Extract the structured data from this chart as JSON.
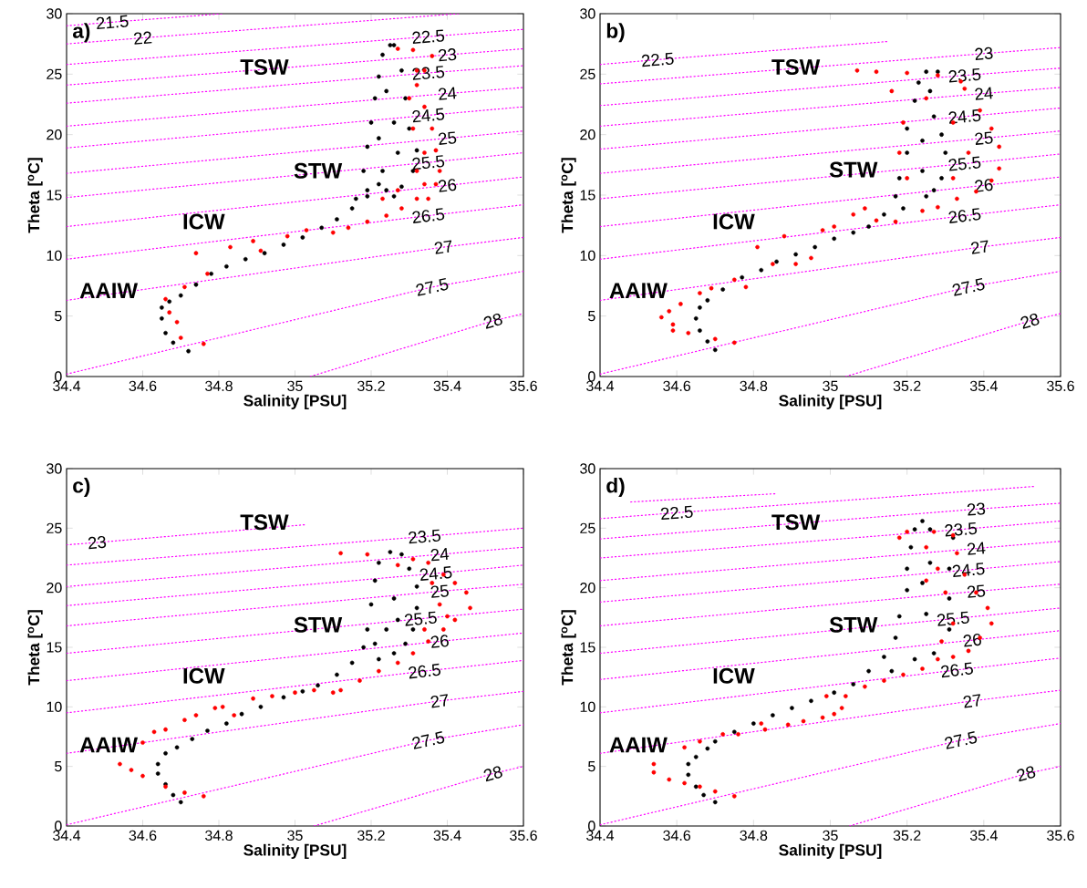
{
  "chart_data": [
    {
      "type": "scatter",
      "title": "a)",
      "xlabel": "Salinity [PSU]",
      "ylabel": "Theta [$^{o}$C]",
      "xlim": [
        34.4,
        35.6
      ],
      "ylim": [
        0,
        30
      ],
      "xticks": [
        34.4,
        34.6,
        34.8,
        35,
        35.2,
        35.4,
        35.6
      ],
      "yticks": [
        0,
        5,
        10,
        15,
        20,
        25,
        30
      ],
      "annotations": [
        "TSW",
        "STW",
        "ICW",
        "AAIW"
      ],
      "series": [
        {
          "type": "line",
          "name": "21.5",
          "color": "#ff00ff",
          "line_style": "dotted",
          "x": [
            34.4,
            34.52,
            34.81
          ],
          "values": [
            29.0,
            29.3,
            30
          ]
        },
        {
          "type": "line",
          "name": "22",
          "color": "#ff00ff",
          "line_style": "dotted",
          "x": [
            34.4,
            34.6,
            35.43
          ],
          "values": [
            27.5,
            28.0,
            30
          ]
        },
        {
          "type": "line",
          "name": "22.5",
          "color": "#ff00ff",
          "line_style": "dotted",
          "x": [
            34.4,
            35.35,
            35.6
          ],
          "values": [
            25.8,
            28.1,
            28.7
          ]
        },
        {
          "type": "line",
          "name": "23",
          "color": "#ff00ff",
          "line_style": "dotted",
          "x": [
            34.4,
            35.4,
            35.6
          ],
          "values": [
            24.1,
            26.6,
            27.1
          ]
        },
        {
          "type": "line",
          "name": "23.5",
          "color": "#ff00ff",
          "line_style": "dotted",
          "x": [
            34.4,
            35.35,
            35.6
          ],
          "values": [
            22.6,
            25.1,
            25.7
          ]
        },
        {
          "type": "line",
          "name": "24",
          "color": "#ff00ff",
          "line_style": "dotted",
          "x": [
            34.4,
            35.4,
            35.6
          ],
          "values": [
            20.7,
            23.4,
            23.9
          ]
        },
        {
          "type": "line",
          "name": "24.5",
          "color": "#ff00ff",
          "line_style": "dotted",
          "x": [
            34.4,
            35.35,
            35.6
          ],
          "values": [
            18.9,
            21.6,
            22.3
          ]
        },
        {
          "type": "line",
          "name": "25",
          "color": "#ff00ff",
          "line_style": "dotted",
          "x": [
            34.4,
            35.4,
            35.6
          ],
          "values": [
            16.8,
            19.7,
            20.3
          ]
        },
        {
          "type": "line",
          "name": "25.5",
          "color": "#ff00ff",
          "line_style": "dotted",
          "x": [
            34.4,
            35.35,
            35.6
          ],
          "values": [
            14.8,
            17.7,
            18.5
          ]
        },
        {
          "type": "line",
          "name": "26",
          "color": "#ff00ff",
          "line_style": "dotted",
          "x": [
            34.4,
            35.4,
            35.6
          ],
          "values": [
            12.4,
            15.8,
            16.5
          ]
        },
        {
          "type": "line",
          "name": "26.5",
          "color": "#ff00ff",
          "line_style": "dotted",
          "x": [
            34.4,
            35.35,
            35.6
          ],
          "values": [
            9.7,
            13.3,
            14.2
          ]
        },
        {
          "type": "line",
          "name": "27",
          "color": "#ff00ff",
          "line_style": "dotted",
          "x": [
            34.4,
            35.39,
            35.6
          ],
          "values": [
            6.3,
            10.7,
            11.5
          ]
        },
        {
          "type": "line",
          "name": "27.5",
          "color": "#ff00ff",
          "line_style": "dotted",
          "x": [
            34.4,
            35.36,
            35.6
          ],
          "values": [
            0.2,
            7.4,
            8.7
          ]
        },
        {
          "type": "line",
          "name": "28",
          "color": "#ff00ff",
          "line_style": "dotted",
          "x": [
            35.04,
            35.52,
            35.6
          ],
          "values": [
            0,
            4.6,
            5.2
          ]
        },
        {
          "color": "#000000",
          "marker": "circle",
          "x": [
            34.72,
            34.68,
            34.66,
            34.65,
            34.65,
            34.67,
            34.7,
            34.74,
            34.78,
            34.82,
            34.87,
            34.92,
            34.97,
            35.02,
            35.07,
            35.11,
            35.15,
            35.19,
            35.22,
            35.18,
            35.19,
            35.2,
            35.21,
            35.22,
            35.23,
            35.25,
            35.26,
            35.28,
            35.29,
            35.3,
            35.32,
            35.31,
            35.28,
            35.26,
            35.24,
            35.26,
            35.27,
            35.23,
            35.22,
            35.24,
            35.16,
            35.19
          ],
          "values": [
            2.1,
            2.8,
            3.6,
            4.8,
            5.7,
            6.2,
            6.7,
            7.6,
            8.5,
            9.1,
            9.7,
            10.2,
            10.9,
            11.5,
            12.3,
            13.0,
            13.9,
            14.9,
            15.9,
            17.0,
            19.0,
            21.0,
            23.0,
            24.8,
            26.6,
            27.4,
            27.4,
            25.3,
            23.0,
            20.5,
            18.7,
            17.0,
            15.7,
            14.9,
            23.6,
            21.0,
            18.5,
            17.0,
            19.7,
            15.4,
            14.7,
            15.4
          ]
        },
        {
          "color": "#ff0000",
          "marker": "circle",
          "x": [
            34.76,
            34.7,
            34.69,
            34.67,
            34.66,
            34.71,
            34.77,
            34.74,
            34.83,
            34.89,
            34.91,
            34.98,
            35.03,
            35.1,
            35.14,
            35.19,
            35.24,
            35.28,
            35.32,
            35.35,
            35.37,
            35.38,
            35.37,
            35.36,
            35.34,
            35.32,
            35.34,
            35.36,
            35.31,
            35.27,
            35.32,
            35.3,
            35.31,
            35.34,
            35.32,
            35.27,
            35.23,
            35.34
          ],
          "values": [
            2.7,
            3.2,
            4.5,
            5.3,
            6.4,
            7.4,
            8.5,
            10.2,
            10.7,
            11.2,
            10.4,
            11.6,
            12.1,
            11.9,
            12.3,
            12.8,
            13.3,
            13.9,
            14.7,
            14.7,
            15.9,
            17.0,
            18.7,
            20.5,
            22.3,
            24.1,
            25.3,
            26.5,
            27.0,
            27.1,
            25.3,
            23.0,
            20.5,
            18.5,
            17.0,
            15.4,
            14.7,
            15.9
          ]
        }
      ]
    },
    {
      "type": "scatter",
      "title": "b)",
      "xlabel": "Salinity [PSU]",
      "ylabel": "Theta [$^{o}$C]",
      "xlim": [
        34.4,
        35.6
      ],
      "ylim": [
        0,
        30
      ],
      "xticks": [
        34.4,
        34.6,
        34.8,
        35,
        35.2,
        35.4,
        35.6
      ],
      "yticks": [
        0,
        5,
        10,
        15,
        20,
        25,
        30
      ],
      "annotations": [
        "TSW",
        "STW",
        "ICW",
        "AAIW"
      ],
      "series": [
        {
          "type": "line",
          "name": "22.5",
          "color": "#ff00ff",
          "line_style": "dotted",
          "x": [
            34.4,
            34.55,
            35.15
          ],
          "values": [
            25.8,
            26.2,
            27.7
          ]
        },
        {
          "type": "line",
          "name": "23",
          "color": "#ff00ff",
          "line_style": "dotted",
          "x": [
            34.4,
            35.4,
            35.6
          ],
          "values": [
            24.2,
            26.7,
            27.2
          ]
        },
        {
          "type": "line",
          "name": "23.5",
          "color": "#ff00ff",
          "line_style": "dotted",
          "x": [
            34.4,
            35.35,
            35.6
          ],
          "values": [
            22.4,
            24.9,
            25.5
          ]
        },
        {
          "type": "line",
          "name": "24",
          "color": "#ff00ff",
          "line_style": "dotted",
          "x": [
            34.4,
            35.4,
            35.6
          ],
          "values": [
            20.7,
            23.4,
            23.9
          ]
        },
        {
          "type": "line",
          "name": "24.5",
          "color": "#ff00ff",
          "line_style": "dotted",
          "x": [
            34.4,
            35.35,
            35.6
          ],
          "values": [
            18.8,
            21.5,
            22.2
          ]
        },
        {
          "type": "line",
          "name": "25",
          "color": "#ff00ff",
          "line_style": "dotted",
          "x": [
            34.4,
            35.4,
            35.6
          ],
          "values": [
            16.8,
            19.7,
            20.3
          ]
        },
        {
          "type": "line",
          "name": "25.5",
          "color": "#ff00ff",
          "line_style": "dotted",
          "x": [
            34.4,
            35.35,
            35.6
          ],
          "values": [
            14.7,
            17.6,
            18.4
          ]
        },
        {
          "type": "line",
          "name": "26",
          "color": "#ff00ff",
          "line_style": "dotted",
          "x": [
            34.4,
            35.4,
            35.6
          ],
          "values": [
            12.4,
            15.8,
            16.5
          ]
        },
        {
          "type": "line",
          "name": "26.5",
          "color": "#ff00ff",
          "line_style": "dotted",
          "x": [
            34.4,
            35.35,
            35.6
          ],
          "values": [
            9.7,
            13.3,
            14.2
          ]
        },
        {
          "type": "line",
          "name": "27",
          "color": "#ff00ff",
          "line_style": "dotted",
          "x": [
            34.4,
            35.39,
            35.6
          ],
          "values": [
            6.3,
            10.7,
            11.5
          ]
        },
        {
          "type": "line",
          "name": "27.5",
          "color": "#ff00ff",
          "line_style": "dotted",
          "x": [
            34.4,
            35.36,
            35.6
          ],
          "values": [
            0.2,
            7.4,
            8.7
          ]
        },
        {
          "type": "line",
          "name": "28",
          "color": "#ff00ff",
          "line_style": "dotted",
          "x": [
            35.04,
            35.52,
            35.6
          ],
          "values": [
            0,
            4.6,
            5.2
          ]
        },
        {
          "color": "#000000",
          "marker": "circle",
          "x": [
            34.7,
            34.68,
            34.66,
            34.65,
            34.66,
            34.68,
            34.72,
            34.77,
            34.82,
            34.86,
            34.91,
            34.96,
            35.01,
            35.06,
            35.1,
            35.14,
            35.17,
            35.18,
            35.2,
            35.2,
            35.22,
            35.23,
            35.25,
            35.28,
            35.26,
            35.27,
            35.29,
            35.3,
            35.29,
            35.27,
            35.25,
            35.19,
            35.24,
            35.24
          ],
          "values": [
            2.2,
            2.9,
            3.8,
            4.8,
            5.7,
            6.3,
            7.2,
            8.2,
            8.8,
            9.5,
            10.1,
            10.7,
            11.4,
            11.9,
            12.4,
            13.4,
            14.9,
            16.4,
            18.5,
            20.5,
            22.8,
            24.3,
            25.2,
            25.2,
            23.6,
            21.5,
            20.0,
            18.5,
            16.4,
            15.4,
            14.9,
            13.9,
            17.0,
            19.5
          ]
        },
        {
          "color": "#ff0000",
          "marker": "circle",
          "x": [
            34.75,
            34.7,
            34.63,
            34.59,
            34.59,
            34.56,
            34.58,
            34.61,
            34.66,
            34.69,
            34.75,
            34.78,
            34.81,
            34.85,
            34.88,
            34.91,
            34.95,
            34.98,
            35.01,
            35.06,
            35.09,
            35.12,
            35.17,
            35.24,
            35.28,
            35.33,
            35.38,
            35.42,
            35.44,
            35.44,
            35.42,
            35.39,
            35.35,
            35.34,
            35.28,
            35.2,
            35.12,
            35.07,
            35.16,
            35.19,
            35.18,
            35.2,
            35.32,
            35.36,
            35.32,
            35.25
          ],
          "values": [
            2.8,
            3.1,
            3.6,
            3.8,
            4.3,
            4.9,
            5.4,
            6.0,
            6.9,
            7.3,
            8.0,
            7.4,
            10.7,
            9.3,
            11.6,
            9.3,
            9.8,
            12.1,
            12.4,
            13.4,
            13.9,
            12.9,
            12.8,
            13.7,
            14.0,
            14.7,
            15.3,
            16.2,
            17.2,
            19.0,
            20.5,
            22.0,
            23.8,
            24.4,
            24.9,
            25.1,
            25.2,
            25.3,
            23.6,
            21.0,
            18.5,
            16.4,
            21.0,
            18.5,
            16.4,
            23.0
          ]
        }
      ]
    },
    {
      "type": "scatter",
      "title": "c)",
      "xlabel": "Salinity [PSU]",
      "ylabel": "Theta [$^{o}$C]",
      "xlim": [
        34.4,
        35.6
      ],
      "ylim": [
        0,
        30
      ],
      "xticks": [
        34.4,
        34.6,
        34.8,
        35,
        35.2,
        35.4,
        35.6
      ],
      "yticks": [
        0,
        5,
        10,
        15,
        20,
        25,
        30
      ],
      "annotations": [
        "TSW",
        "STW",
        "ICW",
        "AAIW"
      ],
      "series": [
        {
          "type": "line",
          "name": "23",
          "color": "#ff00ff",
          "line_style": "dotted",
          "x": [
            34.4,
            34.48,
            35.03
          ],
          "values": [
            23.6,
            23.8,
            25.3
          ]
        },
        {
          "type": "line",
          "name": "23.5",
          "color": "#ff00ff",
          "line_style": "dotted",
          "x": [
            34.4,
            35.34,
            35.6
          ],
          "values": [
            21.9,
            24.3,
            25.0
          ]
        },
        {
          "type": "line",
          "name": "24",
          "color": "#ff00ff",
          "line_style": "dotted",
          "x": [
            34.4,
            35.38,
            35.6
          ],
          "values": [
            20.1,
            22.8,
            23.4
          ]
        },
        {
          "type": "line",
          "name": "24.5",
          "color": "#ff00ff",
          "line_style": "dotted",
          "x": [
            34.4,
            35.37,
            35.6
          ],
          "values": [
            18.5,
            21.2,
            21.9
          ]
        },
        {
          "type": "line",
          "name": "25",
          "color": "#ff00ff",
          "line_style": "dotted",
          "x": [
            34.4,
            35.38,
            35.6
          ],
          "values": [
            16.8,
            19.7,
            20.3
          ]
        },
        {
          "type": "line",
          "name": "25.5",
          "color": "#ff00ff",
          "line_style": "dotted",
          "x": [
            34.4,
            35.33,
            35.6
          ],
          "values": [
            14.5,
            17.4,
            18.2
          ]
        },
        {
          "type": "line",
          "name": "26",
          "color": "#ff00ff",
          "line_style": "dotted",
          "x": [
            34.4,
            35.38,
            35.6
          ],
          "values": [
            12.2,
            15.5,
            16.2
          ]
        },
        {
          "type": "line",
          "name": "26.5",
          "color": "#ff00ff",
          "line_style": "dotted",
          "x": [
            34.4,
            35.34,
            35.6
          ],
          "values": [
            9.5,
            13.0,
            13.9
          ]
        },
        {
          "type": "line",
          "name": "27",
          "color": "#ff00ff",
          "line_style": "dotted",
          "x": [
            34.4,
            35.38,
            35.6
          ],
          "values": [
            6.1,
            10.5,
            11.3
          ]
        },
        {
          "type": "line",
          "name": "27.5",
          "color": "#ff00ff",
          "line_style": "dotted",
          "x": [
            34.4,
            35.35,
            35.6
          ],
          "values": [
            0.1,
            7.2,
            8.5
          ]
        },
        {
          "type": "line",
          "name": "28",
          "color": "#ff00ff",
          "line_style": "dotted",
          "x": [
            35.05,
            35.52,
            35.6
          ],
          "values": [
            0,
            4.4,
            5.0
          ]
        },
        {
          "color": "#000000",
          "marker": "circle",
          "x": [
            34.7,
            34.68,
            34.66,
            34.64,
            34.64,
            34.66,
            34.69,
            34.73,
            34.77,
            34.82,
            34.86,
            34.91,
            34.97,
            35.02,
            35.06,
            35.11,
            35.15,
            35.18,
            35.19,
            35.2,
            35.21,
            35.22,
            35.25,
            35.28,
            35.3,
            35.32,
            35.32,
            35.31,
            35.29,
            35.26,
            35.22,
            35.26,
            35.24,
            35.27,
            35.21
          ],
          "values": [
            2.0,
            2.6,
            3.5,
            4.4,
            5.2,
            6.1,
            6.6,
            7.3,
            8.0,
            8.6,
            9.4,
            10.0,
            10.8,
            11.3,
            11.8,
            12.7,
            13.7,
            15.0,
            16.5,
            18.6,
            20.6,
            22.1,
            23.0,
            22.8,
            21.6,
            20.1,
            18.3,
            16.5,
            15.3,
            14.5,
            14.0,
            19.1,
            16.5,
            17.3,
            15.3
          ]
        },
        {
          "color": "#ff0000",
          "marker": "circle",
          "x": [
            34.76,
            34.71,
            34.66,
            34.6,
            34.57,
            34.54,
            34.6,
            34.63,
            34.66,
            34.71,
            34.74,
            34.79,
            34.81,
            34.84,
            34.89,
            34.94,
            35.0,
            35.05,
            35.1,
            35.12,
            35.17,
            35.22,
            35.27,
            35.31,
            35.35,
            35.39,
            35.42,
            35.46,
            35.45,
            35.42,
            35.39,
            35.35,
            35.31,
            35.19,
            35.12,
            35.27,
            35.36,
            35.38,
            35.4,
            35.34
          ],
          "values": [
            2.5,
            2.8,
            3.3,
            4.2,
            4.7,
            5.2,
            7.0,
            7.9,
            8.1,
            8.9,
            9.3,
            9.9,
            10.0,
            9.3,
            10.7,
            10.9,
            11.2,
            11.4,
            11.2,
            11.4,
            12.2,
            13.0,
            13.7,
            14.5,
            15.5,
            16.5,
            17.3,
            18.3,
            19.6,
            20.4,
            21.1,
            22.1,
            22.4,
            22.8,
            22.9,
            21.9,
            20.4,
            18.6,
            17.6,
            16.5
          ]
        }
      ]
    },
    {
      "type": "scatter",
      "title": "d)",
      "xlabel": "Salinity [PSU]",
      "ylabel": "Theta [$^{o}$C]",
      "xlim": [
        34.4,
        35.6
      ],
      "ylim": [
        0,
        30
      ],
      "xticks": [
        34.4,
        34.6,
        34.8,
        35,
        35.2,
        35.4,
        35.6
      ],
      "yticks": [
        0,
        5,
        10,
        15,
        20,
        25,
        30
      ],
      "annotations": [
        "TSW",
        "STW",
        "ICW",
        "AAIW"
      ],
      "series": [
        {
          "type": "line",
          "color": "#ff00ff",
          "line_style": "dotted",
          "x": [
            34.48,
            34.86
          ],
          "values": [
            27.2,
            27.9
          ]
        },
        {
          "type": "line",
          "name": "22.5",
          "color": "#ff00ff",
          "line_style": "dotted",
          "x": [
            34.4,
            34.6,
            35.53
          ],
          "values": [
            25.8,
            26.3,
            28.5
          ]
        },
        {
          "type": "line",
          "name": "23",
          "color": "#ff00ff",
          "line_style": "dotted",
          "x": [
            34.4,
            35.38,
            35.6
          ],
          "values": [
            24.1,
            26.6,
            27.1
          ]
        },
        {
          "type": "line",
          "name": "23.5",
          "color": "#ff00ff",
          "line_style": "dotted",
          "x": [
            34.4,
            35.34,
            35.6
          ],
          "values": [
            22.5,
            24.9,
            25.6
          ]
        },
        {
          "type": "line",
          "name": "24",
          "color": "#ff00ff",
          "line_style": "dotted",
          "x": [
            34.4,
            35.38,
            35.6
          ],
          "values": [
            20.6,
            23.3,
            23.9
          ]
        },
        {
          "type": "line",
          "name": "24.5",
          "color": "#ff00ff",
          "line_style": "dotted",
          "x": [
            34.4,
            35.36,
            35.6
          ],
          "values": [
            18.8,
            21.5,
            22.2
          ]
        },
        {
          "type": "line",
          "name": "25",
          "color": "#ff00ff",
          "line_style": "dotted",
          "x": [
            34.4,
            35.38,
            35.6
          ],
          "values": [
            16.8,
            19.7,
            20.3
          ]
        },
        {
          "type": "line",
          "name": "25.5",
          "color": "#ff00ff",
          "line_style": "dotted",
          "x": [
            34.4,
            35.32,
            35.6
          ],
          "values": [
            14.5,
            17.4,
            18.3
          ]
        },
        {
          "type": "line",
          "name": "26",
          "color": "#ff00ff",
          "line_style": "dotted",
          "x": [
            34.4,
            35.37,
            35.6
          ],
          "values": [
            12.3,
            15.6,
            16.4
          ]
        },
        {
          "type": "line",
          "name": "26.5",
          "color": "#ff00ff",
          "line_style": "dotted",
          "x": [
            34.4,
            35.33,
            35.6
          ],
          "values": [
            9.5,
            13.1,
            14.1
          ]
        },
        {
          "type": "line",
          "name": "27",
          "color": "#ff00ff",
          "line_style": "dotted",
          "x": [
            34.4,
            35.37,
            35.6
          ],
          "values": [
            6.1,
            10.5,
            11.4
          ]
        },
        {
          "type": "line",
          "name": "27.5",
          "color": "#ff00ff",
          "line_style": "dotted",
          "x": [
            34.4,
            35.34,
            35.6
          ],
          "values": [
            0.1,
            7.2,
            8.6
          ]
        },
        {
          "type": "line",
          "name": "28",
          "color": "#ff00ff",
          "line_style": "dotted",
          "x": [
            35.05,
            35.51,
            35.6
          ],
          "values": [
            0,
            4.4,
            5.0
          ]
        },
        {
          "color": "#000000",
          "marker": "circle",
          "x": [
            34.7,
            34.67,
            34.65,
            34.63,
            34.63,
            34.65,
            34.68,
            34.7,
            34.75,
            34.8,
            34.85,
            34.9,
            34.95,
            35.01,
            35.06,
            35.1,
            35.14,
            35.17,
            35.18,
            35.2,
            35.2,
            35.21,
            35.22,
            35.24,
            35.26,
            35.32,
            35.31,
            35.31,
            35.31,
            35.27,
            35.22,
            35.16,
            35.25,
            35.24,
            35.26
          ],
          "values": [
            2.0,
            2.6,
            3.3,
            4.3,
            5.2,
            5.8,
            6.5,
            7.1,
            7.9,
            8.6,
            9.3,
            9.9,
            10.5,
            11.2,
            11.9,
            13.0,
            14.2,
            15.8,
            17.6,
            19.8,
            21.6,
            23.4,
            24.9,
            25.6,
            24.9,
            24.2,
            21.6,
            19.1,
            16.5,
            14.5,
            14.0,
            13.0,
            17.8,
            20.4,
            22.1
          ]
        },
        {
          "color": "#ff0000",
          "marker": "circle",
          "x": [
            34.75,
            34.7,
            34.66,
            34.62,
            34.58,
            34.54,
            34.54,
            34.62,
            34.66,
            34.72,
            34.76,
            34.82,
            34.83,
            34.89,
            34.93,
            34.98,
            35.01,
            34.99,
            35.03,
            35.04,
            35.09,
            35.14,
            35.19,
            35.24,
            35.28,
            35.32,
            35.36,
            35.39,
            35.42,
            35.41,
            35.38,
            35.35,
            35.33,
            35.32,
            35.2,
            35.18,
            35.25,
            35.28,
            35.3,
            35.32,
            35.29,
            35.25,
            35.27
          ],
          "values": [
            2.5,
            2.9,
            3.3,
            3.6,
            3.9,
            4.5,
            5.2,
            6.6,
            7.1,
            7.7,
            7.7,
            8.6,
            8.1,
            8.5,
            8.8,
            9.1,
            9.4,
            10.9,
            9.9,
            10.9,
            11.7,
            12.2,
            12.7,
            13.2,
            14.0,
            14.2,
            14.7,
            15.8,
            17.0,
            18.3,
            19.6,
            21.1,
            22.9,
            24.4,
            24.7,
            24.2,
            23.4,
            21.6,
            19.6,
            17.0,
            15.5,
            20.6,
            24.7
          ]
        }
      ]
    }
  ]
}
